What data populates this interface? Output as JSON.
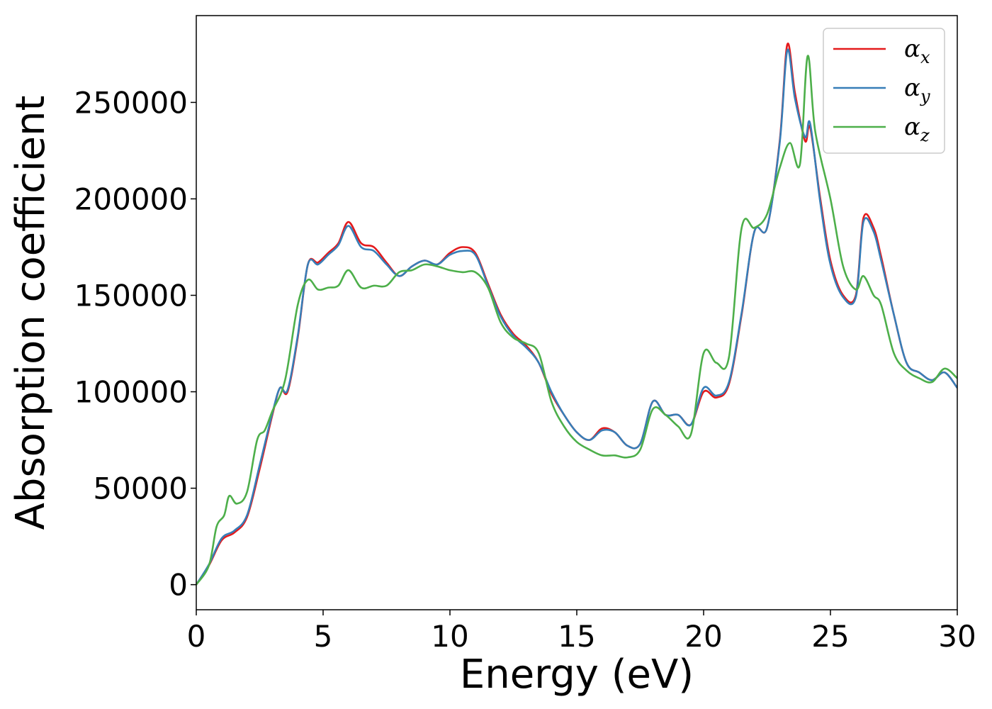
{
  "chart_data": {
    "type": "line",
    "xlabel": "Energy (eV)",
    "ylabel": "Absorption coefficient",
    "xlim": [
      0,
      30
    ],
    "ylim": [
      -13000,
      295000
    ],
    "xticks": [
      0,
      5,
      10,
      15,
      20,
      25,
      30
    ],
    "xtick_labels": [
      "0",
      "5",
      "10",
      "15",
      "20",
      "25",
      "30"
    ],
    "yticks": [
      0,
      50000,
      100000,
      150000,
      200000,
      250000
    ],
    "ytick_labels": [
      "0",
      "50000",
      "100000",
      "150000",
      "200000",
      "250000"
    ],
    "grid": false,
    "legend_position": "top-right",
    "series": [
      {
        "name": "α",
        "subscript": "x",
        "color": "#e41a1c",
        "x": [
          0,
          0.5,
          1,
          1.5,
          2,
          2.5,
          3,
          3.3,
          3.6,
          4,
          4.4,
          4.8,
          5.2,
          5.6,
          6,
          6.5,
          7,
          7.5,
          8,
          8.5,
          9,
          9.5,
          10,
          10.5,
          11,
          11.5,
          12,
          12.5,
          13,
          13.5,
          14,
          14.5,
          15,
          15.5,
          16,
          16.5,
          17,
          17.5,
          18,
          18.5,
          19,
          19.5,
          20,
          20.5,
          21,
          21.5,
          22,
          22.5,
          23,
          23.3,
          23.6,
          24,
          24.2,
          24.6,
          25,
          25.5,
          26,
          26.3,
          26.7,
          27,
          27.5,
          28,
          28.5,
          29,
          29.5,
          30
        ],
        "y": [
          0,
          10000,
          23000,
          27000,
          35000,
          60000,
          88000,
          102000,
          100000,
          128000,
          166000,
          167000,
          172000,
          177000,
          188000,
          177000,
          175000,
          167000,
          160000,
          165000,
          168000,
          166000,
          172000,
          175000,
          172000,
          156000,
          140000,
          130000,
          124000,
          115000,
          99000,
          88000,
          79000,
          75000,
          81000,
          79000,
          72000,
          73000,
          95000,
          88000,
          88000,
          83000,
          100000,
          97000,
          104000,
          140000,
          183000,
          185000,
          230000,
          280000,
          255000,
          230000,
          237000,
          200000,
          168000,
          150000,
          150000,
          190000,
          185000,
          170000,
          140000,
          115000,
          110000,
          106000,
          110000,
          102000
        ]
      },
      {
        "name": "α",
        "subscript": "y",
        "color": "#377eb8",
        "x": [
          0,
          0.5,
          1,
          1.5,
          2,
          2.5,
          3,
          3.3,
          3.6,
          4,
          4.4,
          4.8,
          5.2,
          5.6,
          6,
          6.5,
          7,
          7.5,
          8,
          8.5,
          9,
          9.5,
          10,
          10.5,
          11,
          11.5,
          12,
          12.5,
          13,
          13.5,
          14,
          14.5,
          15,
          15.5,
          16,
          16.5,
          17,
          17.5,
          18,
          18.5,
          19,
          19.5,
          20,
          20.5,
          21,
          21.5,
          22,
          22.5,
          23,
          23.3,
          23.6,
          24,
          24.2,
          24.6,
          25,
          25.5,
          26,
          26.3,
          26.7,
          27,
          27.5,
          28,
          28.5,
          29,
          29.5,
          30
        ],
        "y": [
          0,
          10500,
          24000,
          28000,
          36000,
          62000,
          89000,
          102000,
          101000,
          129000,
          166000,
          166000,
          171000,
          176000,
          186000,
          175000,
          173000,
          166000,
          160000,
          165000,
          168000,
          166000,
          171000,
          173000,
          171000,
          155000,
          139000,
          129000,
          123000,
          115000,
          100000,
          88000,
          79000,
          75000,
          80000,
          79000,
          72000,
          73000,
          95000,
          88000,
          88000,
          83000,
          102000,
          98000,
          105000,
          141000,
          183000,
          185000,
          229000,
          277000,
          252000,
          232000,
          239000,
          198000,
          166000,
          149000,
          149000,
          188000,
          183000,
          168000,
          140000,
          115000,
          110000,
          106000,
          110000,
          102000
        ]
      },
      {
        "name": "α",
        "subscript": "z",
        "color": "#4daf4a",
        "x": [
          0,
          0.5,
          0.8,
          1.1,
          1.3,
          1.6,
          2,
          2.4,
          2.7,
          3,
          3.5,
          4,
          4.4,
          4.8,
          5.2,
          5.6,
          6,
          6.5,
          7,
          7.5,
          8,
          8.5,
          9,
          9.5,
          10,
          10.5,
          11,
          11.5,
          12,
          12.5,
          13,
          13.5,
          14,
          14.5,
          15,
          15.5,
          16,
          16.5,
          17,
          17.5,
          18,
          18.5,
          19,
          19.5,
          20,
          20.5,
          21,
          21.5,
          22,
          22.5,
          23,
          23.4,
          23.8,
          24.1,
          24.4,
          25,
          25.5,
          26,
          26.3,
          26.7,
          27,
          27.5,
          28,
          28.5,
          29,
          29.5,
          30
        ],
        "y": [
          0,
          10000,
          30000,
          36000,
          46000,
          42000,
          48000,
          75000,
          80000,
          90000,
          106000,
          145000,
          158000,
          153000,
          154000,
          155000,
          163000,
          154000,
          155000,
          155000,
          162000,
          163000,
          166000,
          165000,
          163000,
          162000,
          162000,
          154000,
          136000,
          128000,
          125000,
          120000,
          95000,
          82000,
          74000,
          70000,
          67000,
          67000,
          66000,
          70000,
          91000,
          88000,
          82000,
          78000,
          120000,
          115000,
          118000,
          185000,
          185000,
          192000,
          216000,
          229000,
          218000,
          274000,
          235000,
          200000,
          165000,
          153000,
          160000,
          150000,
          145000,
          120000,
          111000,
          107000,
          105000,
          112000,
          107000
        ]
      }
    ]
  }
}
